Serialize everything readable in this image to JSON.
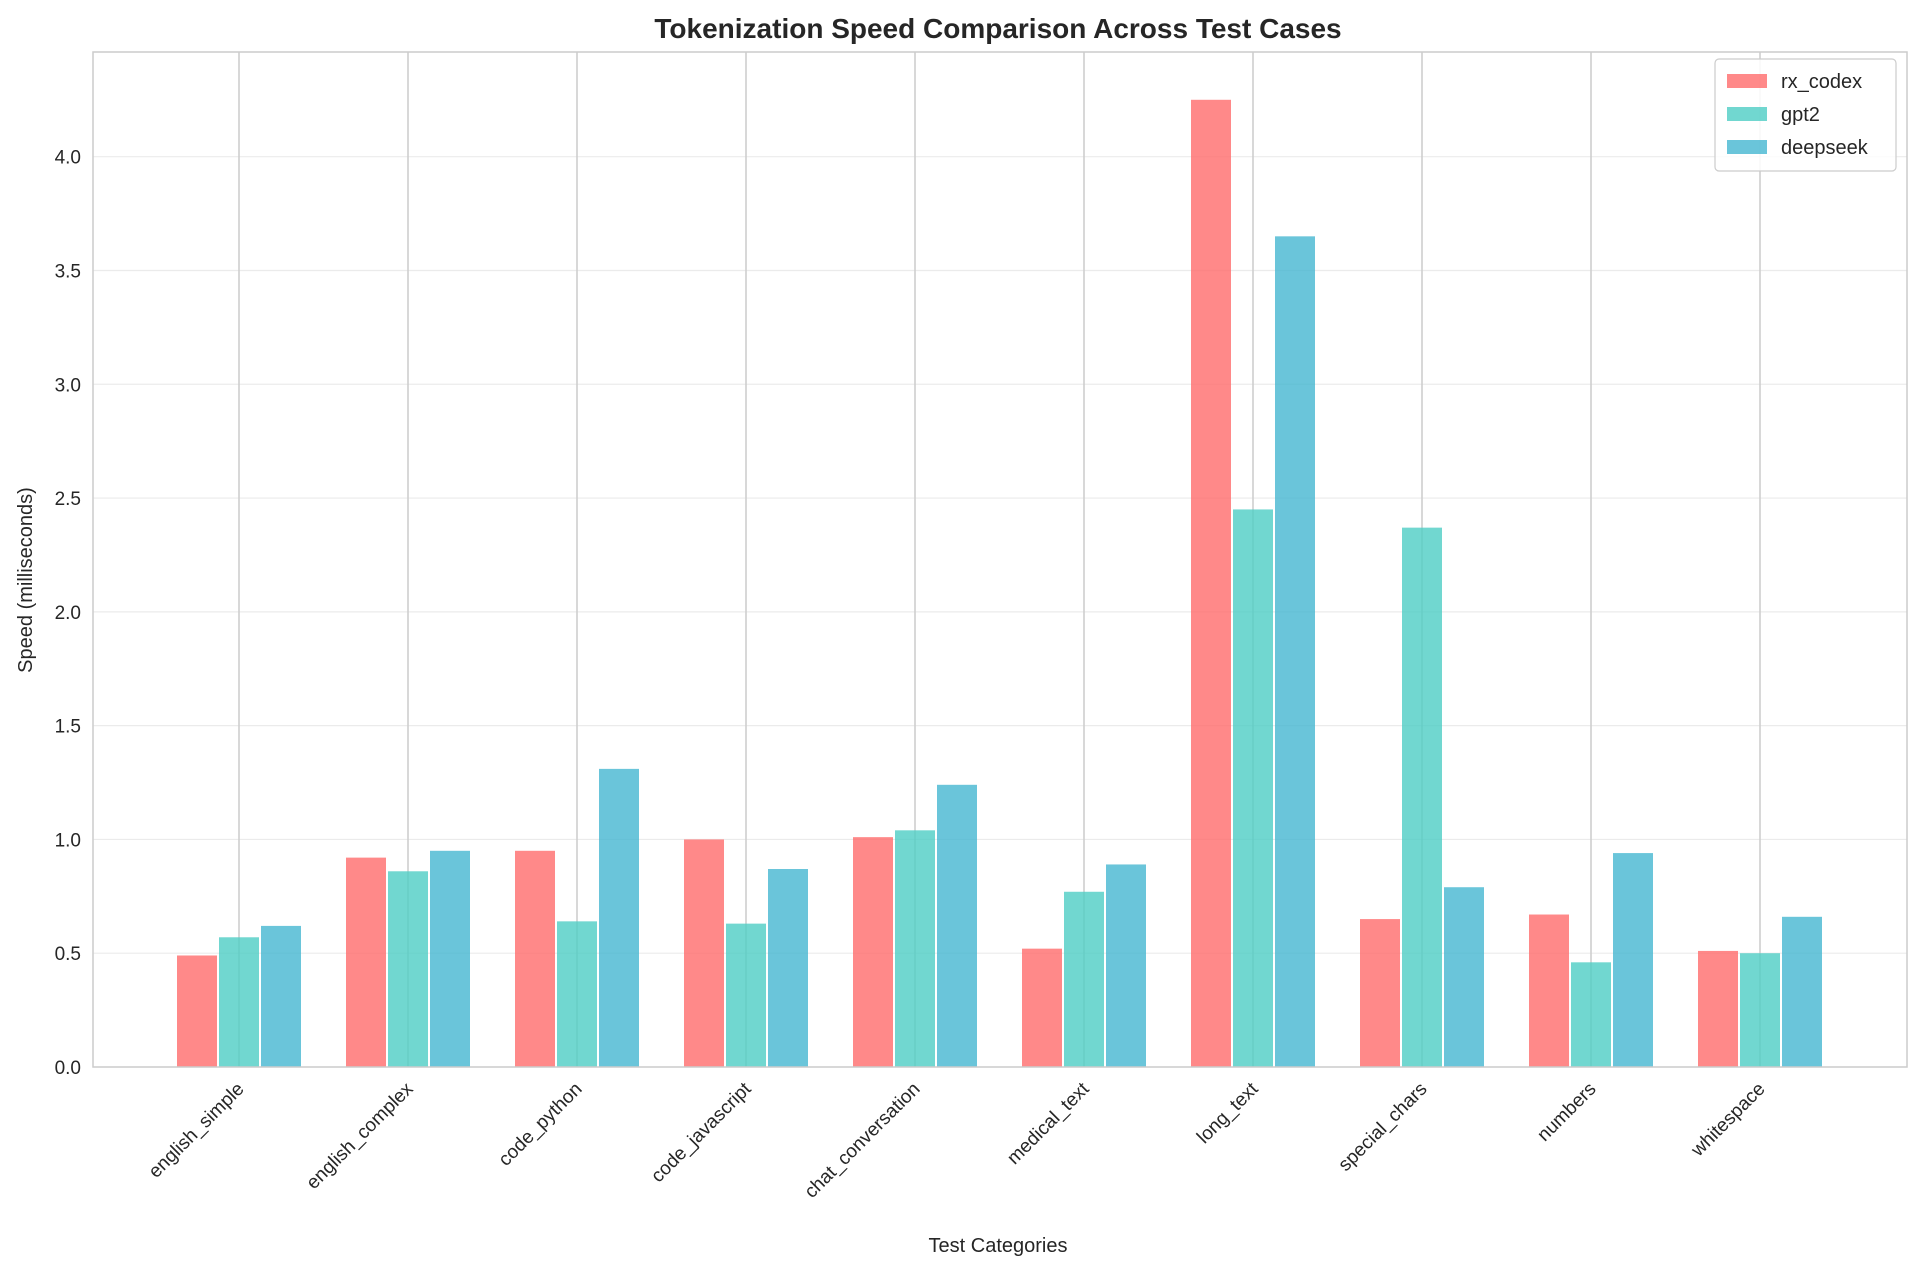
{
  "chart_data": {
    "type": "bar",
    "title": "Tokenization Speed Comparison Across Test Cases",
    "xlabel": "Test Categories",
    "ylabel": "Speed (milliseconds)",
    "ylim": [
      0,
      4.46
    ],
    "yticks": [
      "0.0",
      "0.5",
      "1.0",
      "1.5",
      "2.0",
      "2.5",
      "3.0",
      "3.5",
      "4.0"
    ],
    "grid": true,
    "legend_position": "top-right",
    "categories": [
      "english_simple",
      "english_complex",
      "code_python",
      "code_javascript",
      "chat_conversation",
      "medical_text",
      "long_text",
      "special_chars",
      "numbers",
      "whitespace"
    ],
    "series": [
      {
        "name": "rx_codex",
        "color": "#FF6B6B",
        "values": [
          0.49,
          0.92,
          0.95,
          1.0,
          1.01,
          0.52,
          4.25,
          0.65,
          0.67,
          0.51
        ]
      },
      {
        "name": "gpt2",
        "color": "#4ECDC4",
        "values": [
          0.57,
          0.86,
          0.64,
          0.63,
          1.04,
          0.77,
          2.45,
          2.37,
          0.46,
          0.5
        ]
      },
      {
        "name": "deepseek",
        "color": "#45B7D1",
        "values": [
          0.62,
          0.95,
          1.31,
          0.87,
          1.24,
          0.89,
          3.65,
          0.79,
          0.94,
          0.66
        ]
      }
    ]
  }
}
